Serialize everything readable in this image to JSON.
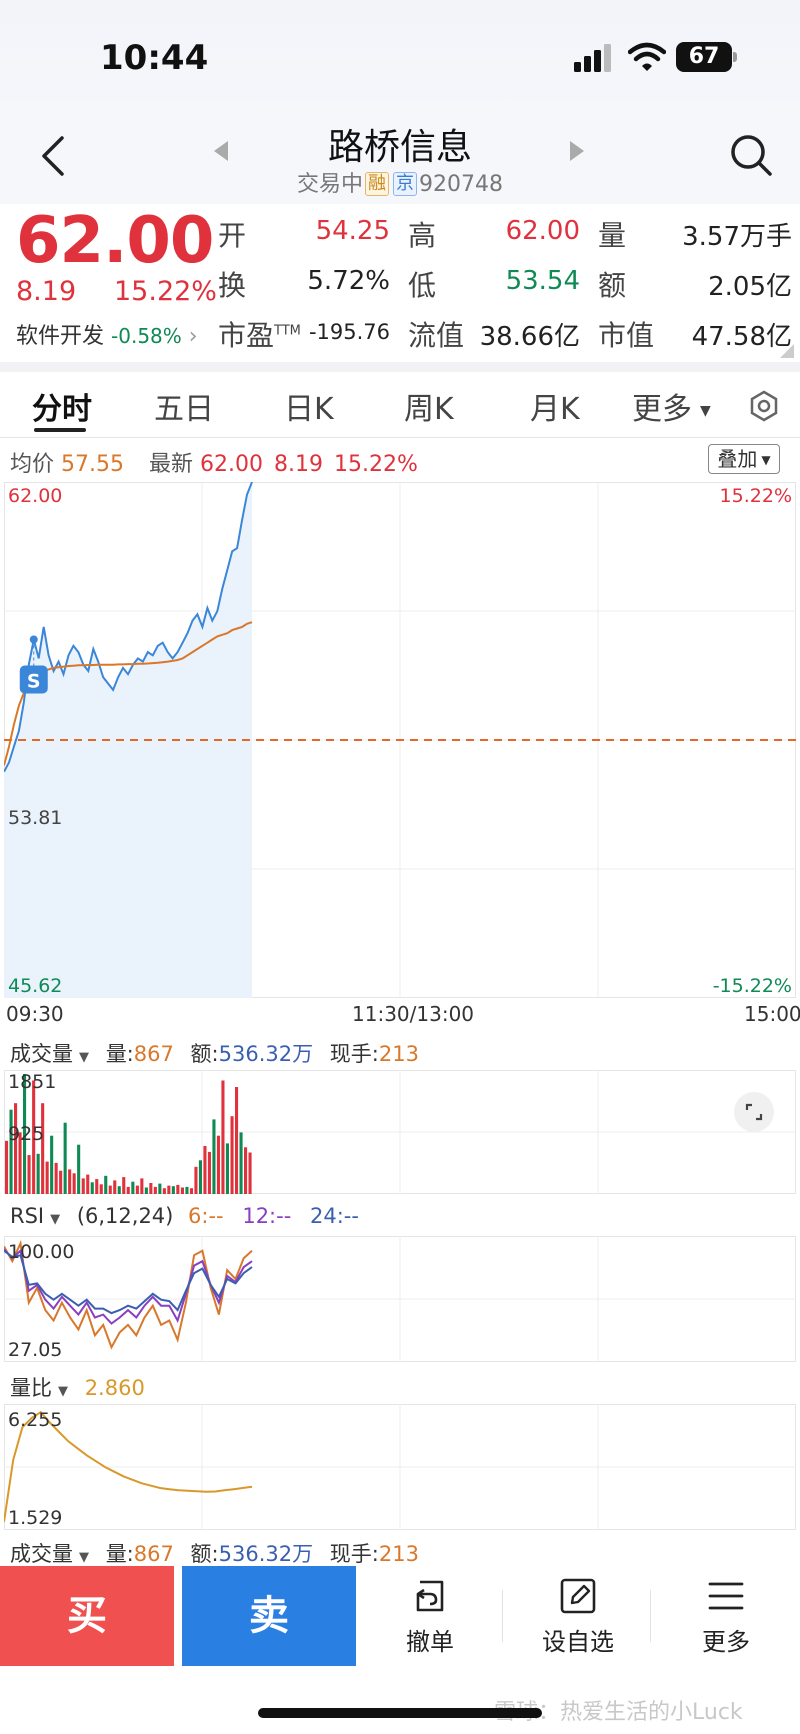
{
  "status_bar": {
    "time": "10:44",
    "battery": "67"
  },
  "header": {
    "title": "路桥信息",
    "status": "交易中",
    "tag1": "融",
    "tag2": "京",
    "code": "920748"
  },
  "quote": {
    "price": "62.00",
    "change": "8.19",
    "change_pct": "15.22%",
    "sector": "软件开发",
    "sector_pct": "-0.58%",
    "fields": [
      {
        "label": "开",
        "value": "54.25"
      },
      {
        "label": "高",
        "value": "62.00"
      },
      {
        "label": "量",
        "value": "3.57万手"
      },
      {
        "label": "换",
        "value": "5.72%"
      },
      {
        "label": "低",
        "value": "53.54"
      },
      {
        "label": "额",
        "value": "2.05亿"
      },
      {
        "label": "市盈",
        "label_sup": "TTM",
        "value": "-195.76"
      },
      {
        "label": "流值",
        "value": "38.66亿"
      },
      {
        "label": "市值",
        "value": "47.58亿"
      }
    ]
  },
  "tabs": [
    "分时",
    "五日",
    "日K",
    "周K",
    "月K",
    "更多"
  ],
  "chart_info": {
    "avg_label": "均价",
    "avg_value": "57.55",
    "latest_label": "最新",
    "latest_value": "62.00",
    "latest_change": "8.19",
    "latest_pct": "15.22%",
    "overlay_btn": "叠加"
  },
  "chart_data": [
    {
      "type": "line",
      "title": "分时",
      "y_labels_left": [
        "62.00",
        "53.81",
        "45.62"
      ],
      "y_labels_right": [
        "15.22%",
        "-15.22%"
      ],
      "ylim": [
        45.62,
        62.0
      ],
      "prev_close": 53.81,
      "x_labels": [
        "09:30",
        "11:30/13:00",
        "15:00"
      ],
      "marker": "S",
      "series": [
        {
          "name": "price",
          "values": [
            52.8,
            53.1,
            53.6,
            54.1,
            55.0,
            56.2,
            57.0,
            56.4,
            57.4,
            56.5,
            56.0,
            56.3,
            55.9,
            56.5,
            56.8,
            56.6,
            56.2,
            56.0,
            56.7,
            56.3,
            55.8,
            55.6,
            55.4,
            55.8,
            56.1,
            55.9,
            56.2,
            56.4,
            56.3,
            56.6,
            56.5,
            56.8,
            56.9,
            56.6,
            56.4,
            56.6,
            56.9,
            57.2,
            57.6,
            57.8,
            57.4,
            58.0,
            57.6,
            57.9,
            58.6,
            59.2,
            59.8,
            59.9,
            60.8,
            61.6,
            62.0
          ]
        },
        {
          "name": "均价",
          "values": [
            53.0,
            53.6,
            54.3,
            54.9,
            55.3,
            55.6,
            55.8,
            55.9,
            56.0,
            56.05,
            56.1,
            56.12,
            56.14,
            56.16,
            56.17,
            56.18,
            56.18,
            56.19,
            56.19,
            56.2,
            56.2,
            56.2,
            56.2,
            56.21,
            56.21,
            56.22,
            56.22,
            56.23,
            56.23,
            56.24,
            56.25,
            56.26,
            56.28,
            56.3,
            56.32,
            56.35,
            56.4,
            56.5,
            56.6,
            56.7,
            56.8,
            56.9,
            57.0,
            57.1,
            57.15,
            57.2,
            57.3,
            57.35,
            57.4,
            57.5,
            57.55
          ]
        }
      ]
    },
    {
      "type": "bar",
      "title": "成交量",
      "y_labels": [
        "1851",
        "925"
      ],
      "ylim": [
        0,
        1851
      ],
      "values": [
        820,
        1300,
        1400,
        950,
        1851,
        600,
        1750,
        620,
        1400,
        500,
        900,
        480,
        360,
        1100,
        380,
        320,
        760,
        240,
        300,
        180,
        230,
        150,
        280,
        130,
        210,
        120,
        260,
        110,
        190,
        130,
        240,
        100,
        170,
        110,
        160,
        90,
        130,
        120,
        140,
        100,
        110,
        90,
        420,
        520,
        740,
        650,
        1150,
        900,
        1750,
        780,
        1200,
        1650,
        950,
        720,
        640
      ]
    },
    {
      "type": "line",
      "title": "RSI",
      "params": "(6,12,24)",
      "legend": [
        "6:--",
        "12:--",
        "24:--"
      ],
      "y_labels": [
        "100.00",
        "27.05"
      ],
      "ylim": [
        27.05,
        100.0
      ],
      "series": [
        {
          "name": "6",
          "values": [
            98,
            88,
            100,
            60,
            70,
            55,
            48,
            60,
            50,
            42,
            55,
            38,
            45,
            30,
            40,
            45,
            38,
            50,
            58,
            45,
            48,
            35,
            60,
            92,
            95,
            70,
            52,
            82,
            76,
            90,
            95
          ]
        },
        {
          "name": "12",
          "values": [
            96,
            90,
            95,
            68,
            72,
            62,
            56,
            64,
            58,
            52,
            60,
            50,
            52,
            46,
            50,
            55,
            50,
            58,
            64,
            58,
            58,
            48,
            66,
            85,
            88,
            72,
            60,
            78,
            74,
            84,
            88
          ]
        },
        {
          "name": "24",
          "values": [
            95,
            91,
            92,
            72,
            73,
            66,
            62,
            66,
            62,
            58,
            62,
            56,
            56,
            53,
            55,
            58,
            56,
            61,
            66,
            62,
            61,
            55,
            68,
            80,
            83,
            72,
            64,
            76,
            73,
            80,
            84
          ]
        }
      ]
    },
    {
      "type": "line",
      "title": "量比",
      "legend": [
        "2.860"
      ],
      "y_labels": [
        "6.255",
        "1.529"
      ],
      "ylim": [
        1.529,
        6.255
      ],
      "series": [
        {
          "name": "量比",
          "values": [
            1.55,
            4.2,
            5.6,
            6.0,
            6.25,
            5.8,
            5.4,
            5.0,
            4.7,
            4.4,
            4.15,
            3.9,
            3.7,
            3.5,
            3.35,
            3.2,
            3.1,
            3.0,
            2.95,
            2.9,
            2.88,
            2.86,
            2.84,
            2.85,
            2.9,
            2.95,
            3.0,
            3.05
          ]
        }
      ]
    }
  ],
  "vol_panel": {
    "name": "成交量",
    "vol_label": "量:",
    "vol": "867",
    "amt_label": "额:",
    "amt": "536.32万",
    "hand_label": "现手:",
    "hand": "213"
  },
  "rsi_panel": {
    "name": "RSI",
    "params": "(6,12,24)",
    "l1": "6:--",
    "l2": "12:--",
    "l3": "24:--"
  },
  "lb_panel": {
    "name": "量比",
    "value": "2.860"
  },
  "vol_panel2": {
    "name": "成交量",
    "vol_label": "量:",
    "vol": "867",
    "amt_label": "额:",
    "amt": "536.32万",
    "hand_label": "现手:",
    "hand": "213"
  },
  "bottom_bar": {
    "buy": "买",
    "sell": "卖",
    "cancel": "撤单",
    "watch": "设自选",
    "more": "更多"
  },
  "watermark": "雪球：热爱生活的小Luck",
  "colors": {
    "red": "#e0323d",
    "green": "#0f8a55",
    "price_line": "#3a86d8",
    "avg_line": "#d9782a",
    "buy_bg": "#f0504f",
    "sell_bg": "#2a7fe3"
  }
}
